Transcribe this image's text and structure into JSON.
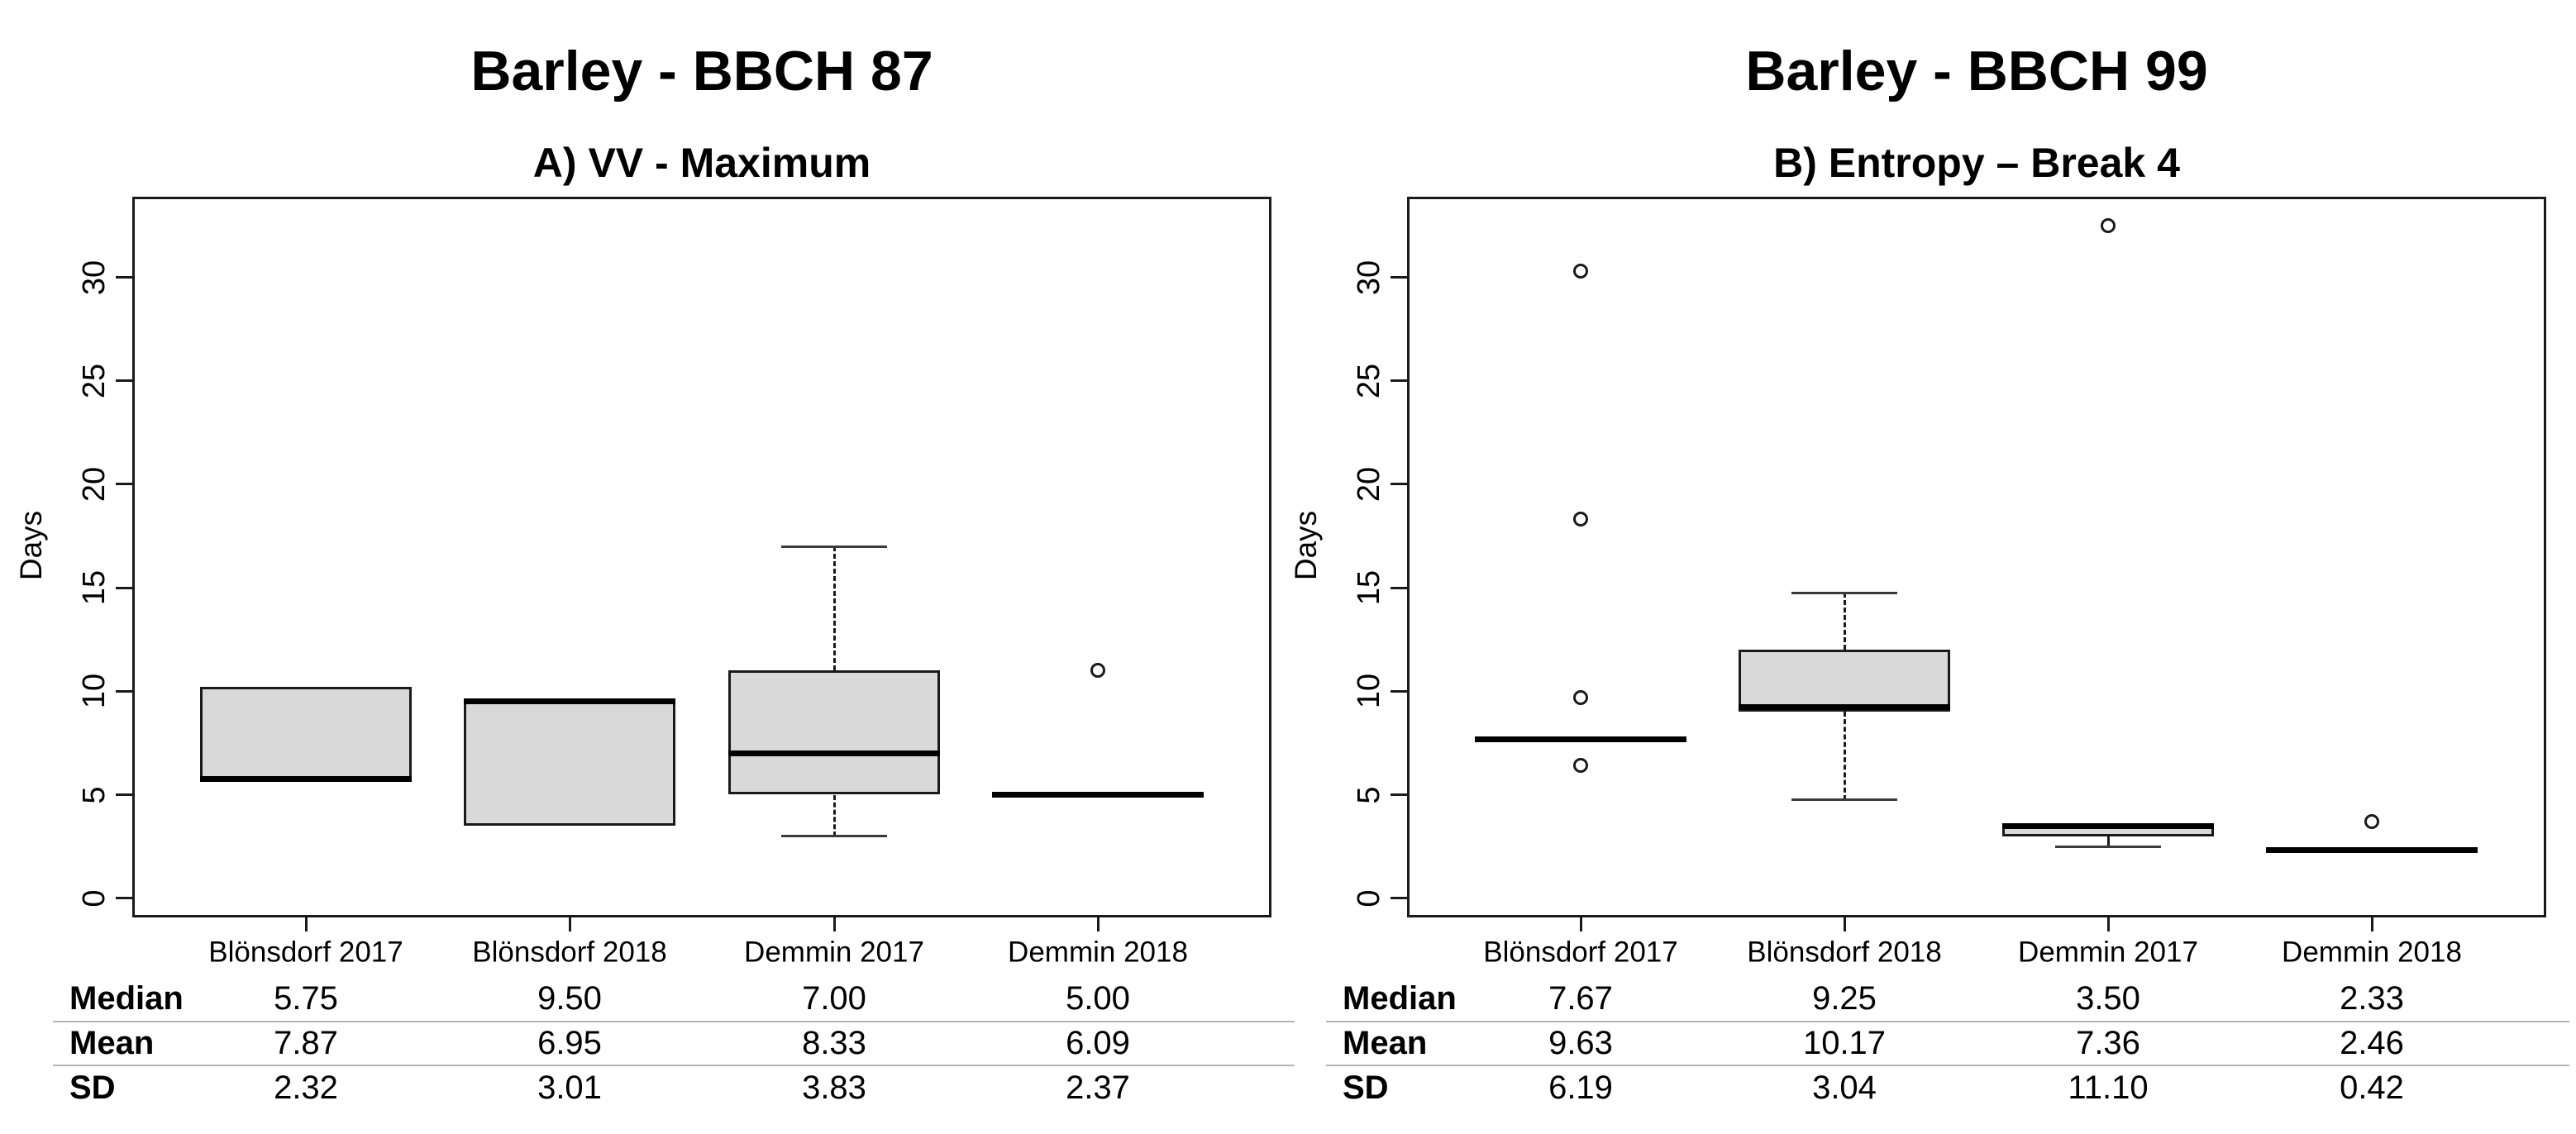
{
  "page": {
    "background": "#ffffff"
  },
  "styles": {
    "box_fill": "#d9d9d9",
    "line_color": "#1a1a1a",
    "median_color": "#000000",
    "table_rule_color": "#b3b3b3"
  },
  "chart_data": [
    {
      "type": "boxplot",
      "title": "Barley - BBCH 87",
      "subtitle": "A) VV - Maximum",
      "xlabel": "",
      "ylabel": "Days",
      "ylim": [
        0,
        33
      ],
      "yticks": [
        0,
        5,
        10,
        15,
        20,
        25,
        30
      ],
      "grid": false,
      "categories": [
        "Blönsdorf 2017",
        "Blönsdorf 2018",
        "Demmin 2017",
        "Demmin 2018"
      ],
      "boxes": [
        {
          "category": "Blönsdorf 2017",
          "min": 5.75,
          "q1": 5.75,
          "median": 5.75,
          "q3": 10.2,
          "max": 10.2,
          "outliers": []
        },
        {
          "category": "Blönsdorf 2018",
          "min": 3.5,
          "q1": 3.5,
          "median": 9.5,
          "q3": 9.5,
          "max": 9.5,
          "outliers": []
        },
        {
          "category": "Demmin 2017",
          "min": 3.0,
          "q1": 5.0,
          "median": 7.0,
          "q3": 11.0,
          "max": 17.0,
          "outliers": []
        },
        {
          "category": "Demmin 2018",
          "min": 5.0,
          "q1": 5.0,
          "median": 5.0,
          "q3": 5.0,
          "max": 5.0,
          "outliers": [
            11.0
          ]
        }
      ],
      "stats_table": {
        "row_labels": [
          "Median",
          "Mean",
          "SD"
        ],
        "rows": [
          [
            "5.75",
            "9.50",
            "7.00",
            "5.00"
          ],
          [
            "7.87",
            "6.95",
            "8.33",
            "6.09"
          ],
          [
            "2.32",
            "3.01",
            "3.83",
            "2.37"
          ]
        ]
      }
    },
    {
      "type": "boxplot",
      "title": "Barley - BBCH 99",
      "subtitle": "B) Entropy – Break 4",
      "xlabel": "",
      "ylabel": "Days",
      "ylim": [
        0,
        33
      ],
      "yticks": [
        0,
        5,
        10,
        15,
        20,
        25,
        30
      ],
      "grid": false,
      "categories": [
        "Blönsdorf 2017",
        "Blönsdorf 2018",
        "Demmin 2017",
        "Demmin 2018"
      ],
      "boxes": [
        {
          "category": "Blönsdorf 2017",
          "min": 7.67,
          "q1": 7.67,
          "median": 7.67,
          "q3": 7.67,
          "max": 7.67,
          "outliers": [
            30.3,
            18.3,
            9.7,
            6.4
          ]
        },
        {
          "category": "Blönsdorf 2018",
          "min": 4.75,
          "q1": 9.0,
          "median": 9.25,
          "q3": 12.0,
          "max": 14.75,
          "outliers": []
        },
        {
          "category": "Demmin 2017",
          "min": 2.5,
          "q1": 3.0,
          "median": 3.5,
          "q3": 3.5,
          "max": 3.5,
          "outliers": [
            32.5
          ]
        },
        {
          "category": "Demmin 2018",
          "min": 2.33,
          "q1": 2.33,
          "median": 2.33,
          "q3": 2.33,
          "max": 2.33,
          "outliers": [
            3.7
          ]
        }
      ],
      "stats_table": {
        "row_labels": [
          "Median",
          "Mean",
          "SD"
        ],
        "rows": [
          [
            "7.67",
            "9.25",
            "3.50",
            "2.33"
          ],
          [
            "9.63",
            "10.17",
            "7.36",
            "2.46"
          ],
          [
            "6.19",
            "3.04",
            "11.10",
            "0.42"
          ]
        ]
      }
    }
  ]
}
